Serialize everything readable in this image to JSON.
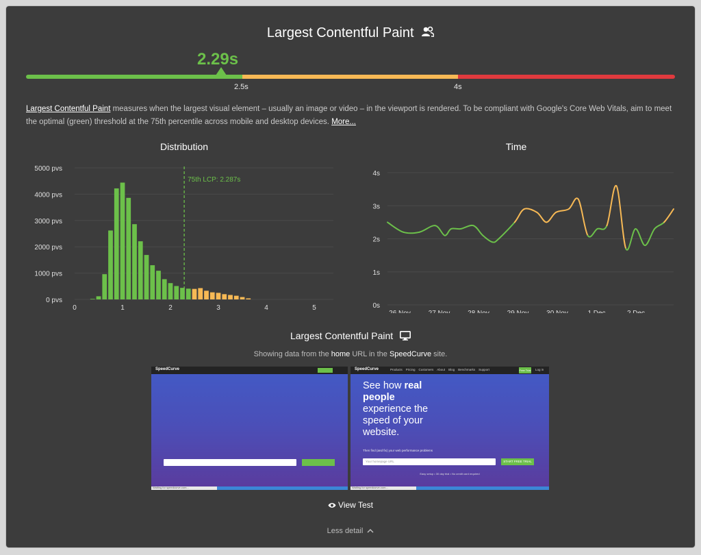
{
  "header": {
    "title": "Largest Contentful Paint",
    "value": "2.29s",
    "thresholds": [
      "2.5s",
      "4s"
    ],
    "colors": {
      "good": "#6cc04a",
      "needs_improvement": "#f7b955",
      "poor": "#e03a3e"
    }
  },
  "description": {
    "link": "Largest Contentful Paint",
    "text": " measures when the largest visual element – usually an image or video – in the viewport is rendered. To be compliant with Google's Core Web Vitals, aim to meet the optimal (green) threshold at the 75th percentile across mobile and desktop devices. ",
    "more": "More..."
  },
  "chart_data": [
    {
      "type": "bar",
      "title": "Distribution",
      "x": [
        0.25,
        0.375,
        0.5,
        0.625,
        0.75,
        0.875,
        1.0,
        1.125,
        1.25,
        1.375,
        1.5,
        1.625,
        1.75,
        1.875,
        2.0,
        2.125,
        2.25,
        2.375,
        2.5,
        2.625,
        2.75,
        2.875,
        3.0,
        3.125,
        3.25,
        3.375,
        3.5,
        3.625,
        3.75,
        3.875,
        4.0,
        4.125,
        4.25,
        4.375,
        4.5,
        4.625,
        4.75,
        4.875,
        5.0,
        5.125,
        5.25
      ],
      "values": [
        0,
        20,
        120,
        960,
        2620,
        4220,
        4440,
        3860,
        2860,
        2210,
        1690,
        1300,
        1090,
        770,
        620,
        510,
        440,
        410,
        400,
        430,
        330,
        270,
        250,
        200,
        170,
        140,
        90,
        40,
        0,
        0,
        0,
        0,
        0,
        0,
        0,
        0,
        0,
        0,
        0,
        0,
        0
      ],
      "bin_width": 0.125,
      "xlim": [
        0,
        5.4
      ],
      "ylim": [
        0,
        5000
      ],
      "xticks": [
        "0",
        "1",
        "2",
        "3",
        "4",
        "5"
      ],
      "yticks": [
        "0 pvs",
        "1000 pvs",
        "2000 pvs",
        "3000 pvs",
        "4000 pvs",
        "5000 pvs"
      ],
      "annotation": "75th LCP: 2.287s",
      "annotation_x": 2.287,
      "thresholds": [
        2.5,
        4.0
      ],
      "grid": true
    },
    {
      "type": "line",
      "title": "Time",
      "x": [
        0,
        0.5,
        1,
        1.5,
        1.8,
        2,
        2.3,
        2.7,
        3,
        3.3,
        3.5,
        4,
        4.3,
        4.7,
        5,
        5.3,
        5.7,
        6,
        6.3,
        6.6,
        6.9,
        7.2,
        7.5,
        7.8,
        8.1,
        8.4,
        8.7,
        9
      ],
      "values": [
        2.5,
        2.2,
        2.2,
        2.4,
        2.1,
        2.3,
        2.3,
        2.4,
        2.1,
        1.9,
        2.0,
        2.5,
        2.9,
        2.8,
        2.5,
        2.8,
        2.9,
        3.2,
        2.1,
        2.3,
        2.4,
        3.6,
        1.7,
        2.3,
        1.8,
        2.3,
        2.5,
        2.9
      ],
      "xlim": [
        0,
        9
      ],
      "ylim": [
        0,
        4
      ],
      "xticks": [
        "26 Nov",
        "27 Nov",
        "28 Nov",
        "29 Nov",
        "30 Nov",
        "1 Dec",
        "2 Dec"
      ],
      "yticks": [
        "0s",
        "1s",
        "2s",
        "3s",
        "4s"
      ],
      "thresholds": [
        2.5,
        4.0
      ],
      "grid": true
    }
  ],
  "subsection": {
    "title": "Largest Contentful Paint",
    "showing_prefix": "Showing data from the ",
    "showing_url": "home",
    "showing_mid": " URL in the ",
    "showing_site": "SpeedCurve",
    "showing_suffix": " site."
  },
  "screenshots": [
    {
      "logo": "SpeedCurve",
      "nav_button": "",
      "status": "Waiting for speedcurve.com..."
    },
    {
      "logo": "SpeedCurve",
      "nav": [
        "Products",
        "Pricing",
        "Customers",
        "About",
        "Blog",
        "Benchmarks",
        "Support"
      ],
      "nav_cta": "Free Trial",
      "nav_login": "Log in",
      "hero_pre": "See how ",
      "hero_bold": "real people",
      "hero_rest": "experience the speed of your website.",
      "hero_sub": "Then find (and fix) your web performance problems",
      "input_placeholder": "Your homepage URL",
      "cta": "START FREE TRIAL",
      "fine_print": "Easy setup • 30 day trial • No credit card required",
      "status": "Waiting for speedcurve.com..."
    }
  ],
  "actions": {
    "view_test": "View Test",
    "less_detail": "Less detail"
  }
}
